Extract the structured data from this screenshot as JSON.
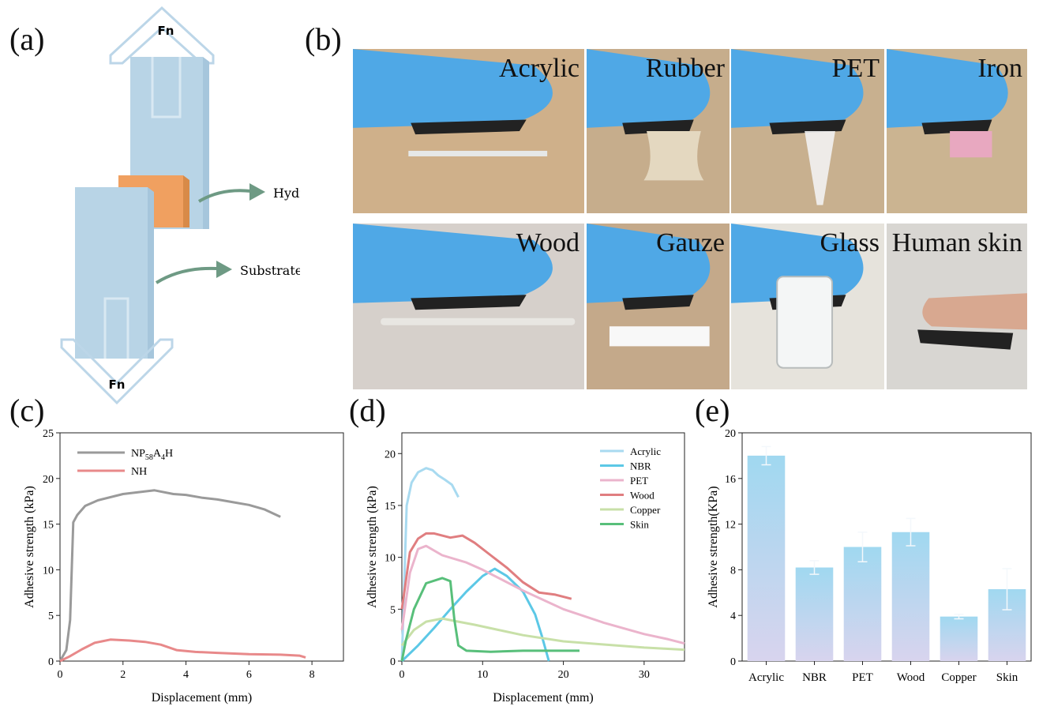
{
  "panel_labels": {
    "a": "(a)",
    "b": "(b)",
    "c": "(c)",
    "d": "(d)",
    "e": "(e)"
  },
  "panel_a": {
    "force_top": "Fn",
    "force_bottom": "Fn",
    "hydrogel_label": "Hydrogel",
    "substrate_label": "Substrate",
    "colors": {
      "plate": "#b8d4e6",
      "hydrogel": "#f0a060",
      "arrow": "#6e9a84",
      "outline": "#bcd6e8"
    }
  },
  "panel_b": {
    "photos": [
      {
        "label": "Acrylic",
        "bg": "#cfb08a"
      },
      {
        "label": "Rubber",
        "bg": "#c6ad8c"
      },
      {
        "label": "PET",
        "bg": "#c8b08f"
      },
      {
        "label": "Iron",
        "bg": "#cbb491"
      },
      {
        "label": "Wood",
        "bg": "#d6d0cb"
      },
      {
        "label": "Gauze",
        "bg": "#c4a98a"
      },
      {
        "label": "Glass",
        "bg": "#e6e3dc"
      },
      {
        "label": "Human skin",
        "bg": "#d8d6d2"
      }
    ]
  },
  "chart_data": [
    {
      "type": "line",
      "panel": "c",
      "xlabel": "Displacement (mm)",
      "ylabel": "Adhesive strength (kPa)",
      "xlim": [
        0,
        9
      ],
      "ylim": [
        0,
        25
      ],
      "xticks": [
        0,
        2,
        4,
        6,
        8
      ],
      "yticks": [
        0,
        5,
        10,
        15,
        20,
        25
      ],
      "series": [
        {
          "name": "NP58A4H",
          "name_main": "NP",
          "name_sub1": "58",
          "name_mid": "A",
          "name_sub2": "4",
          "name_end": "H",
          "color": "#9a9a9a",
          "points": [
            [
              0,
              0
            ],
            [
              0.2,
              1.2
            ],
            [
              0.32,
              4.5
            ],
            [
              0.42,
              15.2
            ],
            [
              0.55,
              16
            ],
            [
              0.8,
              17
            ],
            [
              1.2,
              17.6
            ],
            [
              2,
              18.3
            ],
            [
              3,
              18.7
            ],
            [
              3.6,
              18.3
            ],
            [
              4,
              18.2
            ],
            [
              4.5,
              17.9
            ],
            [
              5,
              17.7
            ],
            [
              5.5,
              17.4
            ],
            [
              6,
              17.1
            ],
            [
              6.5,
              16.6
            ],
            [
              7,
              15.8
            ]
          ]
        },
        {
          "name": "NH",
          "color": "#e8898a",
          "points": [
            [
              0,
              0
            ],
            [
              0.3,
              0.5
            ],
            [
              0.7,
              1.3
            ],
            [
              1.1,
              2
            ],
            [
              1.6,
              2.35
            ],
            [
              2.2,
              2.25
            ],
            [
              2.7,
              2.1
            ],
            [
              3.2,
              1.8
            ],
            [
              3.7,
              1.2
            ],
            [
              4.3,
              1
            ],
            [
              5,
              0.9
            ],
            [
              6,
              0.75
            ],
            [
              7,
              0.7
            ],
            [
              7.6,
              0.6
            ],
            [
              7.8,
              0.4
            ]
          ]
        }
      ]
    },
    {
      "type": "line",
      "panel": "d",
      "xlabel": "Displacement (mm)",
      "ylabel": "Adhesive strength (kPa)",
      "xlim": [
        0,
        35
      ],
      "ylim": [
        0,
        22
      ],
      "xticks": [
        0,
        10,
        20,
        30
      ],
      "yticks": [
        0,
        5,
        10,
        15,
        20
      ],
      "series": [
        {
          "name": "Acrylic",
          "color": "#a8daf0",
          "points": [
            [
              0,
              0
            ],
            [
              0.2,
              5
            ],
            [
              0.6,
              15
            ],
            [
              1.2,
              17.2
            ],
            [
              2,
              18.2
            ],
            [
              3,
              18.6
            ],
            [
              3.8,
              18.4
            ],
            [
              4.5,
              17.9
            ],
            [
              5.3,
              17.5
            ],
            [
              6.2,
              17
            ],
            [
              7,
              15.8
            ]
          ]
        },
        {
          "name": "NBR",
          "color": "#5cc8e6",
          "points": [
            [
              0,
              0
            ],
            [
              2,
              1.5
            ],
            [
              4,
              3.2
            ],
            [
              6,
              5
            ],
            [
              8,
              6.7
            ],
            [
              10,
              8.2
            ],
            [
              11.5,
              8.9
            ],
            [
              13,
              8.2
            ],
            [
              15,
              6.7
            ],
            [
              16.5,
              4.5
            ],
            [
              17.3,
              2.5
            ],
            [
              18.2,
              0
            ]
          ]
        },
        {
          "name": "PET",
          "color": "#ebb4cc",
          "points": [
            [
              0,
              3
            ],
            [
              1,
              8.5
            ],
            [
              2,
              10.8
            ],
            [
              3,
              11.1
            ],
            [
              5,
              10.2
            ],
            [
              8,
              9.5
            ],
            [
              10,
              8.8
            ],
            [
              15,
              6.8
            ],
            [
              20,
              5
            ],
            [
              25,
              3.7
            ],
            [
              30,
              2.6
            ],
            [
              33,
              2.1
            ],
            [
              35,
              1.7
            ]
          ]
        },
        {
          "name": "Wood",
          "color": "#e07e80",
          "points": [
            [
              0,
              5
            ],
            [
              1,
              10.5
            ],
            [
              2,
              11.8
            ],
            [
              3,
              12.3
            ],
            [
              4,
              12.3
            ],
            [
              5,
              12.1
            ],
            [
              6,
              11.9
            ],
            [
              7.5,
              12.1
            ],
            [
              9,
              11.4
            ],
            [
              11,
              10.2
            ],
            [
              13,
              9
            ],
            [
              15,
              7.6
            ],
            [
              17,
              6.6
            ],
            [
              19,
              6.4
            ],
            [
              20,
              6.2
            ],
            [
              21,
              6
            ]
          ]
        },
        {
          "name": "Copper",
          "color": "#c8e0a8",
          "points": [
            [
              0,
              1.5
            ],
            [
              1.5,
              3
            ],
            [
              3,
              3.8
            ],
            [
              5,
              4.1
            ],
            [
              7,
              3.8
            ],
            [
              9,
              3.5
            ],
            [
              12,
              3
            ],
            [
              15,
              2.5
            ],
            [
              20,
              1.9
            ],
            [
              25,
              1.6
            ],
            [
              30,
              1.3
            ],
            [
              35,
              1.1
            ]
          ]
        },
        {
          "name": "Skin",
          "color": "#58bf7a",
          "points": [
            [
              0,
              0
            ],
            [
              0.5,
              2
            ],
            [
              1.5,
              5
            ],
            [
              3,
              7.5
            ],
            [
              5,
              8
            ],
            [
              6,
              7.7
            ],
            [
              6.5,
              4
            ],
            [
              7,
              1.5
            ],
            [
              8,
              1
            ],
            [
              11,
              0.9
            ],
            [
              15,
              1
            ],
            [
              20,
              1
            ],
            [
              22,
              1
            ]
          ]
        }
      ]
    },
    {
      "type": "bar",
      "panel": "e",
      "xlabel": "",
      "ylabel": "Adhesive strength(KPa)",
      "ylim": [
        0,
        20
      ],
      "yticks": [
        0,
        4,
        8,
        12,
        16,
        20
      ],
      "categories": [
        "Acrylic",
        "NBR",
        "PET",
        "Wood",
        "Copper",
        "Skin"
      ],
      "values": [
        18.0,
        8.2,
        10.0,
        11.3,
        3.9,
        6.3
      ],
      "errors": [
        0.8,
        0.6,
        1.3,
        1.2,
        0.2,
        1.8
      ],
      "bar_color_top": "#a0d8f0",
      "bar_color_bottom": "#d8d4ee"
    }
  ]
}
